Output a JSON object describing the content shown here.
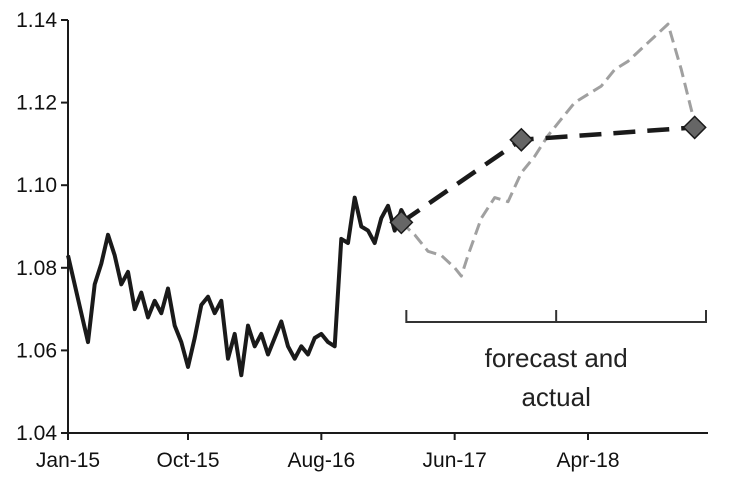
{
  "chart_data": {
    "type": "line",
    "title": "",
    "xlabel": "",
    "ylabel": "",
    "x_ticks": [
      "Jan-15",
      "Oct-15",
      "Aug-16",
      "Jun-17",
      "Apr-18"
    ],
    "y_ticks": [
      "1.04",
      "1.06",
      "1.08",
      "1.10",
      "1.12",
      "1.14"
    ],
    "ylim": [
      1.04,
      1.14
    ],
    "xlim": [
      "2015-01",
      "2019-01"
    ],
    "grid": false,
    "legend": "none",
    "series": [
      {
        "style": "solid",
        "color": "#1a1a1a",
        "points": [
          [
            "2015-01",
            1.083
          ],
          [
            "2015-02",
            1.069
          ],
          [
            "2015-02",
            1.062
          ],
          [
            "2015-03",
            1.076
          ],
          [
            "2015-03",
            1.081
          ],
          [
            "2015-04",
            1.088
          ],
          [
            "2015-04",
            1.083
          ],
          [
            "2015-05",
            1.076
          ],
          [
            "2015-05",
            1.079
          ],
          [
            "2015-06",
            1.07
          ],
          [
            "2015-06",
            1.074
          ],
          [
            "2015-07",
            1.068
          ],
          [
            "2015-07",
            1.072
          ],
          [
            "2015-08",
            1.069
          ],
          [
            "2015-08",
            1.075
          ],
          [
            "2015-09",
            1.066
          ],
          [
            "2015-09",
            1.062
          ],
          [
            "2015-10",
            1.056
          ],
          [
            "2015-10",
            1.063
          ],
          [
            "2015-11",
            1.071
          ],
          [
            "2015-11",
            1.073
          ],
          [
            "2015-12",
            1.069
          ],
          [
            "2015-12",
            1.072
          ],
          [
            "2016-01",
            1.058
          ],
          [
            "2016-01",
            1.064
          ],
          [
            "2016-02",
            1.054
          ],
          [
            "2016-02",
            1.066
          ],
          [
            "2016-03",
            1.061
          ],
          [
            "2016-03",
            1.064
          ],
          [
            "2016-04",
            1.059
          ],
          [
            "2016-05",
            1.067
          ],
          [
            "2016-05",
            1.061
          ],
          [
            "2016-06",
            1.058
          ],
          [
            "2016-06",
            1.061
          ],
          [
            "2016-07",
            1.059
          ],
          [
            "2016-07",
            1.063
          ],
          [
            "2016-08",
            1.064
          ],
          [
            "2016-08",
            1.062
          ],
          [
            "2016-09",
            1.061
          ],
          [
            "2016-09",
            1.087
          ],
          [
            "2016-10",
            1.086
          ],
          [
            "2016-10",
            1.097
          ],
          [
            "2016-11",
            1.09
          ],
          [
            "2016-11",
            1.089
          ],
          [
            "2016-12",
            1.086
          ],
          [
            "2016-12",
            1.092
          ],
          [
            "2017-01",
            1.095
          ],
          [
            "2017-01",
            1.089
          ],
          [
            "2017-02",
            1.094
          ],
          [
            "2017-02",
            1.091
          ]
        ]
      },
      {
        "style": "dashed",
        "color": "#a0a0a0",
        "points": [
          [
            "2017-02",
            1.091
          ],
          [
            "2017-03",
            1.088
          ],
          [
            "2017-04",
            1.084
          ],
          [
            "2017-05",
            1.083
          ],
          [
            "2017-06",
            1.08
          ],
          [
            "2017-06",
            1.078
          ],
          [
            "2017-07",
            1.083
          ],
          [
            "2017-08",
            1.092
          ],
          [
            "2017-09",
            1.097
          ],
          [
            "2017-10",
            1.096
          ],
          [
            "2017-11",
            1.103
          ],
          [
            "2017-12",
            1.107
          ],
          [
            "2018-01",
            1.112
          ],
          [
            "2018-02",
            1.116
          ],
          [
            "2018-03",
            1.12
          ],
          [
            "2018-04",
            1.122
          ],
          [
            "2018-05",
            1.124
          ],
          [
            "2018-06",
            1.128
          ],
          [
            "2018-07",
            1.13
          ],
          [
            "2018-08",
            1.133
          ],
          [
            "2018-09",
            1.136
          ],
          [
            "2018-10",
            1.139
          ],
          [
            "2018-11",
            1.128
          ],
          [
            "2018-12",
            1.115
          ]
        ]
      },
      {
        "style": "dashed-markers",
        "color": "#1a1a1a",
        "marker": "diamond",
        "marker_color": "#666666",
        "points": [
          [
            "2017-02",
            1.091
          ],
          [
            "2017-11",
            1.111
          ],
          [
            "2018-12",
            1.114
          ]
        ]
      }
    ],
    "annotations": {
      "bracket_start": "2017-02",
      "bracket_end": "2019-01",
      "label_lines": [
        "forecast and",
        "actual"
      ]
    }
  }
}
